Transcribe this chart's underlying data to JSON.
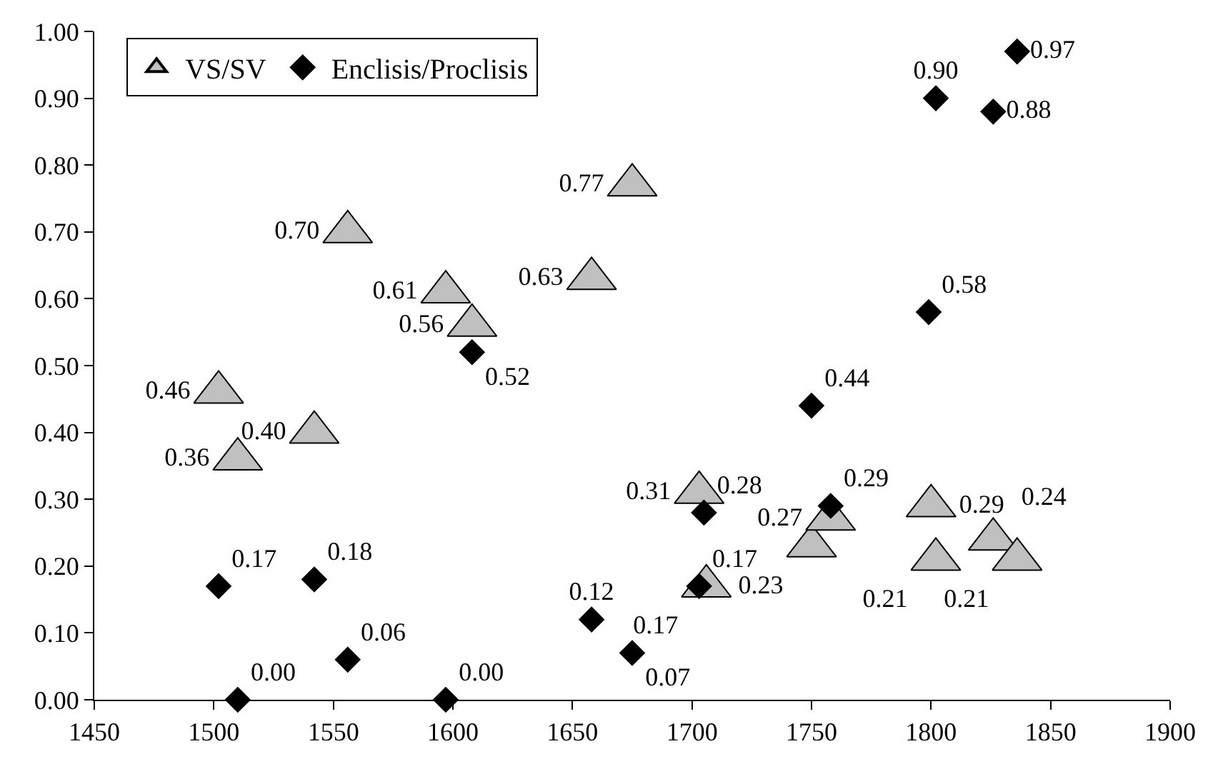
{
  "chart_data": {
    "type": "scatter",
    "xlim": [
      1450,
      1900
    ],
    "xticks": [
      1450,
      1500,
      1550,
      1600,
      1650,
      1700,
      1750,
      1800,
      1850,
      1900
    ],
    "ylim": [
      0,
      1
    ],
    "yticks": [
      {
        "value": 0,
        "label": "0.00"
      },
      {
        "value": 0.1,
        "label": "0.10"
      },
      {
        "value": 0.2,
        "label": "0.20"
      },
      {
        "value": 0.3,
        "label": "0.30"
      },
      {
        "value": 0.4,
        "label": "0.40"
      },
      {
        "value": 0.5,
        "label": "0.50"
      },
      {
        "value": 0.6,
        "label": "0.60"
      },
      {
        "value": 0.7,
        "label": "0.70"
      },
      {
        "value": 0.8,
        "label": "0.80"
      },
      {
        "value": 0.9,
        "label": "0.90"
      },
      {
        "value": 1,
        "label": "1.00"
      }
    ],
    "legend": "top left",
    "series": [
      {
        "name": "VS/SV",
        "color": "#c0c0c0",
        "marker": "triangle",
        "x": [
          1502,
          1510,
          1542,
          1556,
          1597,
          1608,
          1658,
          1675,
          1703,
          1706,
          1750,
          1758,
          1800,
          1802,
          1826,
          1836
        ],
        "values": [
          0.46,
          0.36,
          0.4,
          0.7,
          0.61,
          0.56,
          0.63,
          0.77,
          0.31,
          0.17,
          0.23,
          0.27,
          0.29,
          0.21,
          0.24,
          0.21
        ],
        "value_labels": [
          "0.46",
          "0.36",
          "0.40",
          "0.70",
          "0.61",
          "0.56",
          "0.63",
          "0.77",
          "0.31",
          "0.17",
          "0.23",
          "0.27",
          "0.29",
          "0.21",
          "0.24",
          "0.21"
        ]
      },
      {
        "name": "Enclisis/Proclisis",
        "color": "#000000",
        "marker": "diamond",
        "x": [
          1502,
          1510,
          1542,
          1556,
          1597,
          1608,
          1658,
          1675,
          1705,
          1703,
          1750,
          1758,
          1799,
          1802,
          1826,
          1836
        ],
        "values": [
          0.17,
          0.0,
          0.18,
          0.06,
          0.0,
          0.52,
          0.12,
          0.07,
          0.28,
          0.17,
          0.44,
          0.29,
          0.58,
          0.9,
          0.88,
          0.97
        ],
        "value_labels": [
          "0.17",
          "0.00",
          "0.18",
          "0.06",
          "0.00",
          "0.52",
          "0.12",
          "0.07",
          "0.28",
          "0.17",
          "0.44",
          "0.29",
          "0.58",
          "0.90",
          "0.88",
          "0.97"
        ]
      }
    ]
  }
}
